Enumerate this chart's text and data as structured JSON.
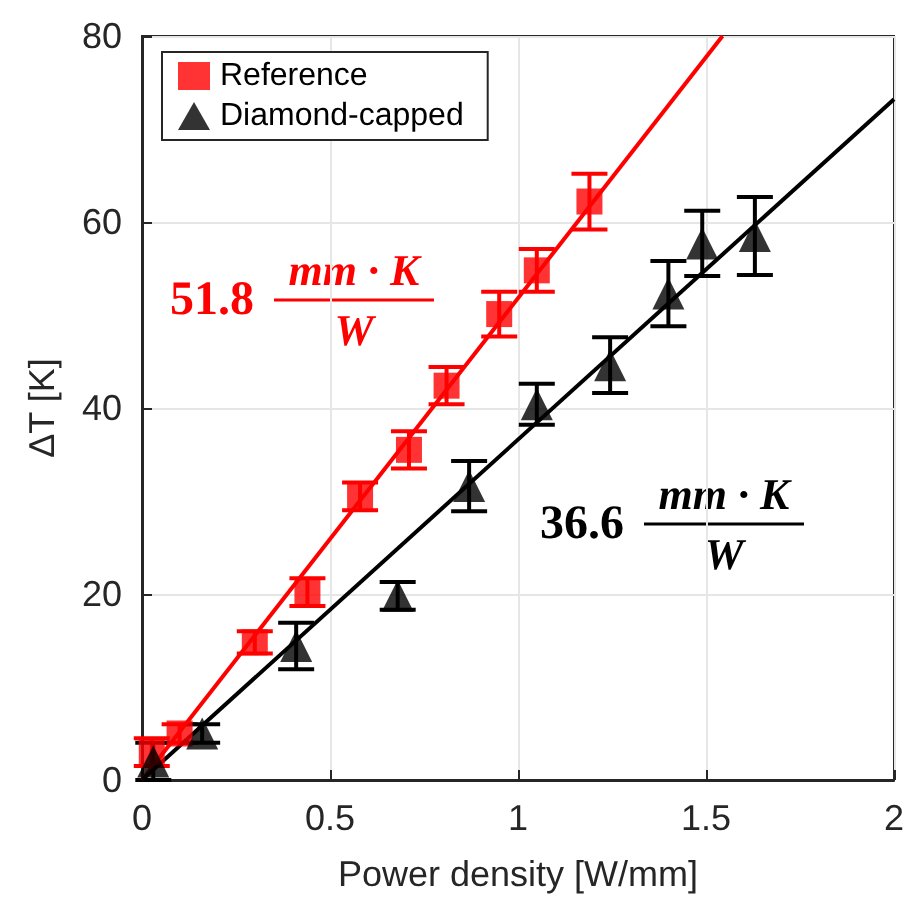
{
  "chart_data": {
    "type": "scatter",
    "xlabel": "Power density [W/mm]",
    "ylabel": "ΔT [K]",
    "xlim": [
      0,
      2
    ],
    "xticks": [
      0,
      0.5,
      1,
      1.5,
      2
    ],
    "ylim": [
      0,
      80
    ],
    "yticks": [
      0,
      20,
      40,
      60,
      80
    ],
    "grid": true,
    "legend": "top left",
    "series": [
      {
        "name": "Reference",
        "color": "#ff0000",
        "marker": "square",
        "x": [
          0.026,
          0.1,
          0.3,
          0.44,
          0.58,
          0.71,
          0.81,
          0.95,
          1.05,
          1.19
        ],
        "values": [
          3,
          5,
          14.8,
          20.2,
          30.5,
          35.5,
          42.4,
          50.1,
          54.8,
          62.2
        ],
        "errors": [
          1.5,
          1,
          1.2,
          1.5,
          1.5,
          2,
          2,
          2.4,
          2.3,
          3
        ]
      },
      {
        "name": "Diamond-capped",
        "color": "#000000",
        "marker": "triangle",
        "x": [
          0.03,
          0.16,
          0.41,
          0.68,
          0.87,
          1.05,
          1.245,
          1.4,
          1.49,
          1.63
        ],
        "values": [
          2,
          5,
          14.4,
          19.8,
          31.6,
          40.4,
          44.6,
          52.3,
          57.7,
          58.5
        ],
        "errors": [
          2,
          1,
          2.5,
          1.5,
          2.7,
          2.2,
          3,
          3.5,
          3.5,
          4.2
        ]
      },
      {
        "type": "line",
        "color": "#ff0000",
        "marker": "none",
        "x": [
          0,
          1.544
        ],
        "values": [
          0,
          80
        ]
      },
      {
        "type": "line",
        "color": "#000000",
        "marker": "none",
        "x": [
          0,
          2
        ],
        "values": [
          0,
          73.2
        ]
      }
    ],
    "annotations": [
      "51.8",
      "mm · K",
      "W",
      "36.6",
      "mm · K",
      "W"
    ]
  }
}
